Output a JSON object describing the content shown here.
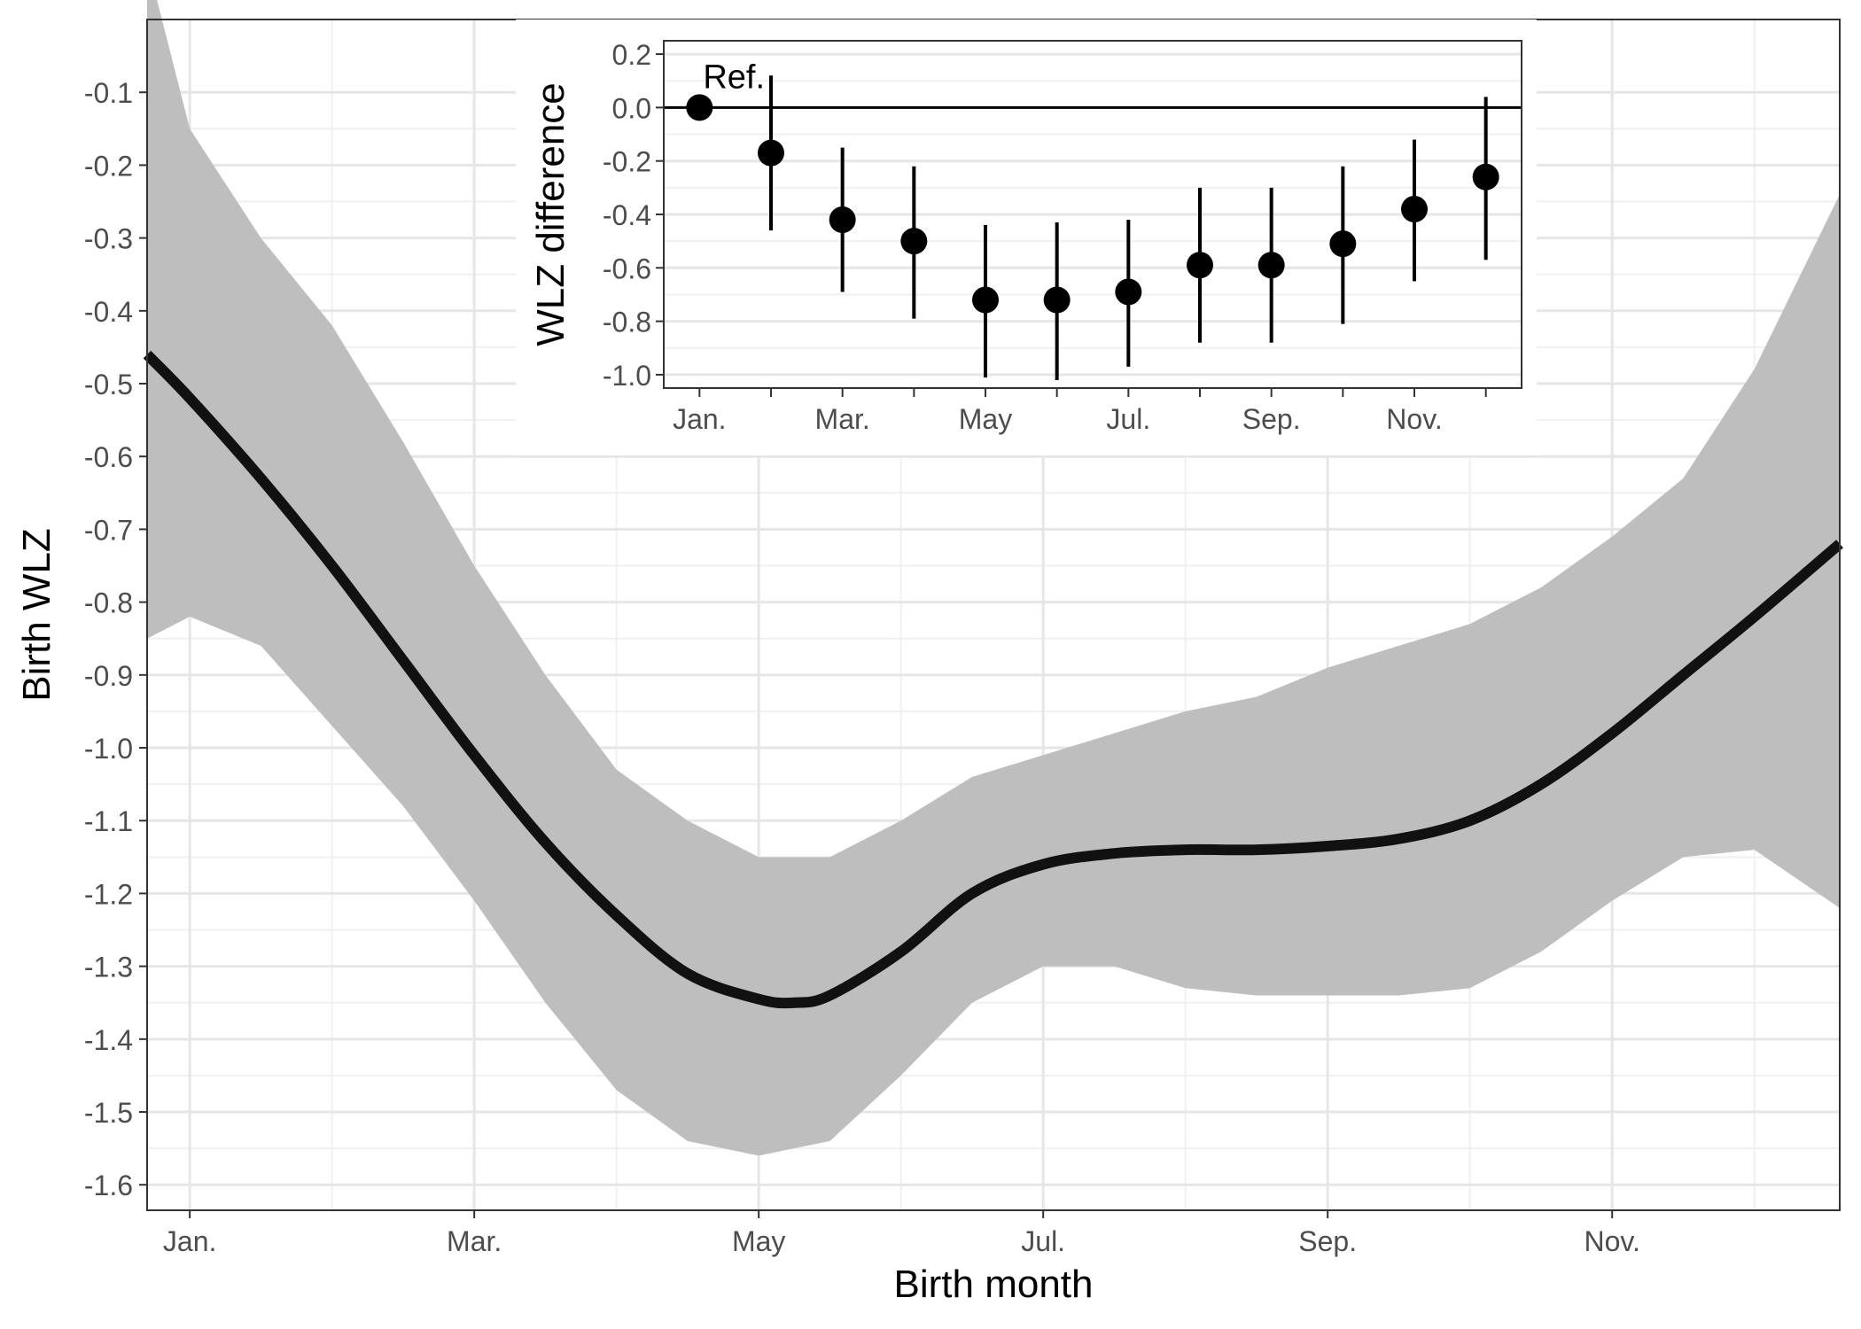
{
  "chart_data": [
    {
      "type": "line",
      "xlabel": "Birth month",
      "ylabel": "Birth WLZ",
      "xlim": [
        0.7,
        12.6
      ],
      "ylim": [
        -1.635,
        0
      ],
      "x_ticks": [
        {
          "label": "Jan.",
          "x": 1
        },
        {
          "label": "Mar.",
          "x": 3
        },
        {
          "label": "May",
          "x": 5
        },
        {
          "label": "Jul.",
          "x": 7
        },
        {
          "label": "Sep.",
          "x": 9
        },
        {
          "label": "Nov.",
          "x": 11
        }
      ],
      "x_minor_ticks": [
        2,
        4,
        6,
        8,
        10,
        12
      ],
      "y_ticks": [
        "-0.1",
        "-0.2",
        "-0.3",
        "-0.4",
        "-0.5",
        "-0.6",
        "-0.7",
        "-0.8",
        "-0.9",
        "-1.0",
        "-1.1",
        "-1.2",
        "-1.3",
        "-1.4",
        "-1.5",
        "-1.6"
      ],
      "grid": true,
      "legend": "none",
      "series": [
        {
          "role": "estimate",
          "color": "#111111",
          "x": [
            0.7,
            1.0,
            1.5,
            2.0,
            2.5,
            3.0,
            3.5,
            4.0,
            4.5,
            5.0,
            5.25,
            5.5,
            6.0,
            6.5,
            7.0,
            7.5,
            8.0,
            8.5,
            9.0,
            9.5,
            10.0,
            10.5,
            11.0,
            11.5,
            12.0,
            12.6
          ],
          "y": [
            -0.46,
            -0.52,
            -0.63,
            -0.75,
            -0.88,
            -1.01,
            -1.13,
            -1.23,
            -1.31,
            -1.345,
            -1.35,
            -1.34,
            -1.28,
            -1.2,
            -1.16,
            -1.145,
            -1.14,
            -1.14,
            -1.135,
            -1.125,
            -1.1,
            -1.05,
            -0.98,
            -0.9,
            -0.82,
            -0.72
          ]
        }
      ],
      "band": {
        "role": "95% confidence interval",
        "color": "#bebebe",
        "x": [
          0.7,
          1.0,
          1.5,
          2.0,
          2.5,
          3.0,
          3.5,
          4.0,
          4.5,
          5.0,
          5.25,
          5.5,
          6.0,
          6.5,
          7.0,
          7.5,
          8.0,
          8.5,
          9.0,
          9.5,
          10.0,
          10.5,
          11.0,
          11.5,
          12.0,
          12.6
        ],
        "lower": [
          -0.85,
          -0.82,
          -0.86,
          -0.97,
          -1.08,
          -1.21,
          -1.35,
          -1.47,
          -1.54,
          -1.56,
          -1.55,
          -1.54,
          -1.45,
          -1.35,
          -1.3,
          -1.3,
          -1.33,
          -1.34,
          -1.34,
          -1.34,
          -1.33,
          -1.28,
          -1.21,
          -1.15,
          -1.14,
          -1.22
        ],
        "upper": [
          0.08,
          -0.15,
          -0.3,
          -0.42,
          -0.58,
          -0.75,
          -0.9,
          -1.03,
          -1.1,
          -1.15,
          -1.15,
          -1.15,
          -1.1,
          -1.04,
          -1.01,
          -0.98,
          -0.95,
          -0.93,
          -0.89,
          -0.86,
          -0.83,
          -0.78,
          -0.71,
          -0.63,
          -0.48,
          -0.24
        ]
      }
    },
    {
      "type": "scatter",
      "subtype": "point estimates with error bars (inset)",
      "ylabel": "WLZ difference",
      "xlabel": "",
      "ylim": [
        -1.05,
        0.25
      ],
      "x_ticks": [
        {
          "label": "Jan.",
          "x": 1
        },
        {
          "label": "Mar.",
          "x": 3
        },
        {
          "label": "May",
          "x": 5
        },
        {
          "label": "Jul.",
          "x": 7
        },
        {
          "label": "Sep.",
          "x": 9
        },
        {
          "label": "Nov.",
          "x": 11
        }
      ],
      "x_minor_ticks": [
        2,
        4,
        6,
        8,
        10,
        12
      ],
      "y_ticks": [
        "0.2",
        "0.0",
        "-0.2",
        "-0.4",
        "-0.6",
        "-0.8",
        "-1.0"
      ],
      "reference_line": 0,
      "annotation": "Ref.",
      "grid": true,
      "legend": "none",
      "points": [
        {
          "x": 1,
          "y": 0.0,
          "lower": null,
          "upper": null
        },
        {
          "x": 2,
          "y": -0.17,
          "lower": -0.46,
          "upper": 0.12
        },
        {
          "x": 3,
          "y": -0.42,
          "lower": -0.69,
          "upper": -0.15
        },
        {
          "x": 4,
          "y": -0.5,
          "lower": -0.79,
          "upper": -0.22
        },
        {
          "x": 5,
          "y": -0.72,
          "lower": -1.01,
          "upper": -0.44
        },
        {
          "x": 6,
          "y": -0.72,
          "lower": -1.02,
          "upper": -0.43
        },
        {
          "x": 7,
          "y": -0.69,
          "lower": -0.97,
          "upper": -0.42
        },
        {
          "x": 8,
          "y": -0.59,
          "lower": -0.88,
          "upper": -0.3
        },
        {
          "x": 9,
          "y": -0.59,
          "lower": -0.88,
          "upper": -0.3
        },
        {
          "x": 10,
          "y": -0.51,
          "lower": -0.81,
          "upper": -0.22
        },
        {
          "x": 11,
          "y": -0.38,
          "lower": -0.65,
          "upper": -0.12
        },
        {
          "x": 12,
          "y": -0.26,
          "lower": -0.57,
          "upper": 0.04
        }
      ]
    }
  ]
}
